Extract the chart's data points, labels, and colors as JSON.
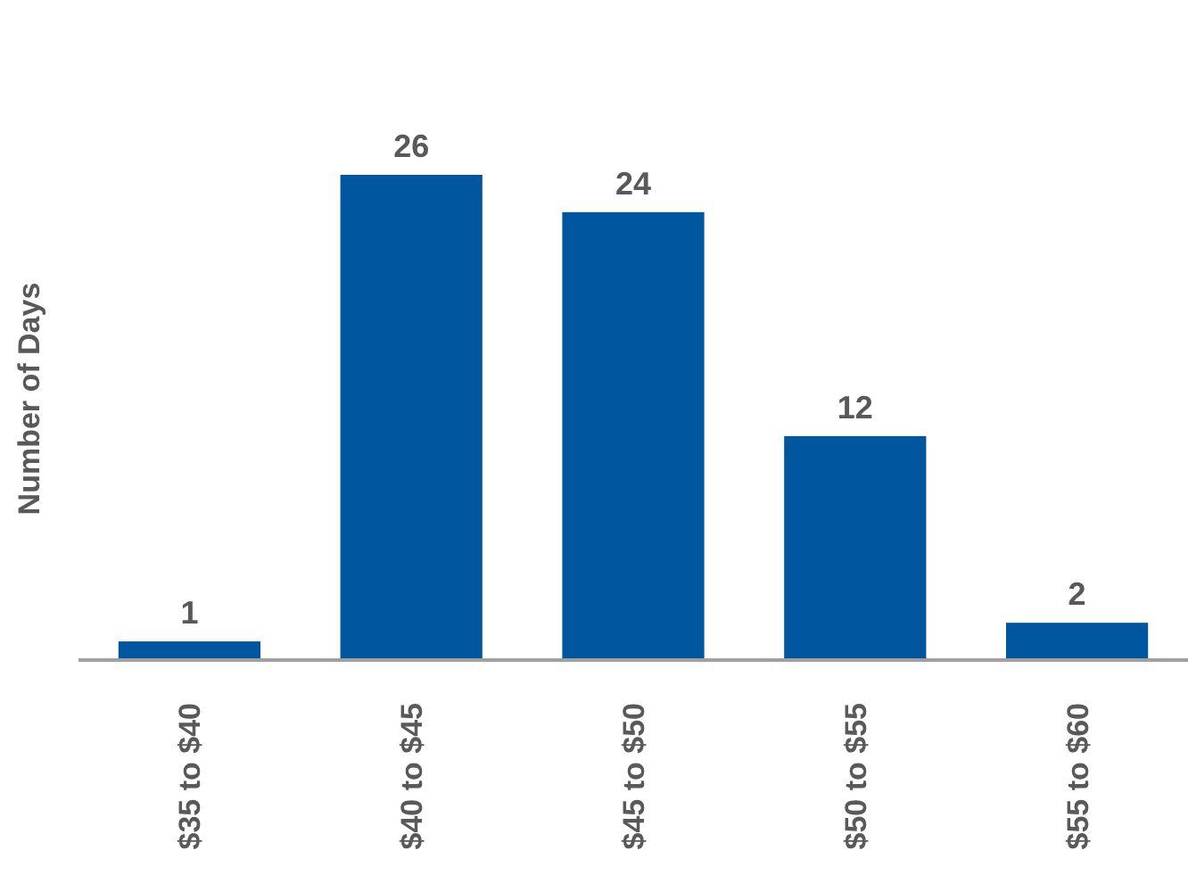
{
  "chart_data": {
    "type": "bar",
    "ylabel": "Number of Days",
    "categories": [
      "$35 to $40",
      "$40 to $45",
      "$45 to $50",
      "$50 to $55",
      "$55 to $60"
    ],
    "values": [
      1,
      26,
      24,
      12,
      2
    ],
    "color": "#0057a0",
    "data_labels": true,
    "tick_labels": "x"
  }
}
